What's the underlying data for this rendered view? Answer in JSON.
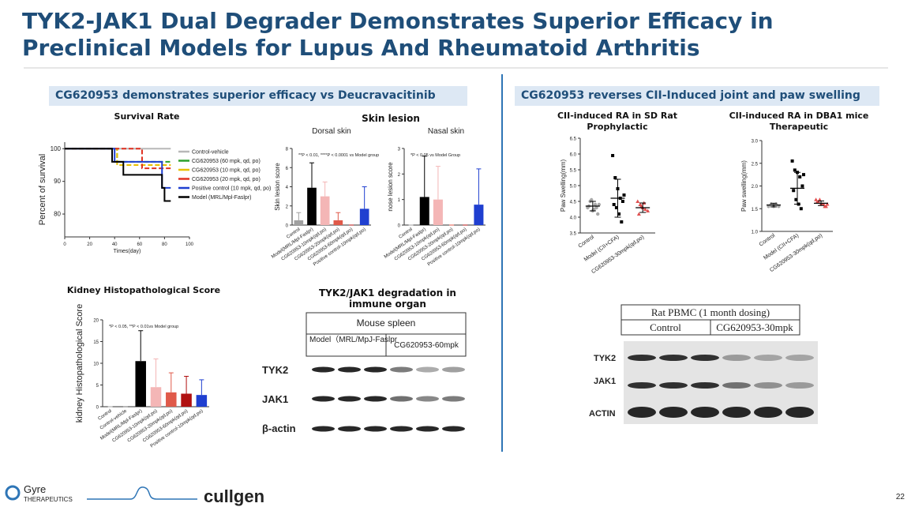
{
  "title": "TYK2-JAK1 Dual Degrader Demonstrates Superior Efficacy in Preclinical Models for Lupus And Rheumatoid Arthritis",
  "sections": [
    {
      "heading": "CG620953 demonstrates superior efficacy vs Deucravacitinib"
    },
    {
      "heading": "CG620953 reverses CII-Induced joint and paw swelling"
    }
  ],
  "skin_lesion_title": "Skin lesion",
  "chart_data": [
    {
      "type": "step",
      "title": "Survival Rate",
      "x_label": "Times(day)",
      "y_label": "Percent of survival",
      "xlim": [
        0,
        100
      ],
      "xticks": [
        0,
        20,
        40,
        60,
        80,
        100
      ],
      "ylim": [
        73,
        102
      ],
      "yticks": [
        80,
        90,
        100
      ],
      "series": [
        {
          "name": "Control-vehicle",
          "color": "#b8b8b8",
          "x": [
            0,
            85
          ],
          "values": [
            100,
            100
          ]
        },
        {
          "name": "CG620953 (60 mpk, qd, po)",
          "color": "#2ca02c",
          "x": [
            0,
            42,
            85
          ],
          "values": [
            100,
            96,
            96
          ]
        },
        {
          "name": "CG620953 (10 mpk, qd, po)",
          "color": "#e8c000",
          "x": [
            0,
            42,
            85
          ],
          "values": [
            100,
            95,
            95
          ]
        },
        {
          "name": "CG620953 (20 mpk, qd, po)",
          "color": "#e03020",
          "x": [
            0,
            62,
            85
          ],
          "values": [
            100,
            94,
            94
          ]
        },
        {
          "name": "Positive control (10 mpk, qd, po)",
          "color": "#1f3fd0",
          "x": [
            0,
            40,
            78,
            85
          ],
          "values": [
            100,
            96,
            88,
            88
          ]
        },
        {
          "name": "Model (MRL/Mpl-Faslpr)",
          "color": "#000000",
          "x": [
            0,
            38,
            47,
            78,
            80,
            85
          ],
          "values": [
            100,
            96,
            92,
            88,
            84,
            84
          ]
        }
      ]
    },
    {
      "type": "bar",
      "subtitle": "Dorsal skin",
      "y_label": "Skin lesion score",
      "annotation": "**P < 0.01, ****P < 0.0001 vs Model group",
      "categories": [
        "Control",
        "Model(MRL/Mpl-Faslpr)",
        "CG620953-10mpk(qd,po)",
        "CG620953-20mpk(qd,po)",
        "CG620953-60mpk(qd,po)",
        "Positive control-10mpk(qd,po)"
      ],
      "values": [
        0.5,
        3.9,
        3.0,
        0.5,
        0,
        1.7
      ],
      "errors": [
        0.8,
        2.6,
        1.5,
        0.8,
        0,
        2.3
      ],
      "colors": [
        "#a0a0a0",
        "#000000",
        "#f4b6b6",
        "#e05a4a",
        "#b01010",
        "#1f3fd0"
      ],
      "ylim": [
        0,
        8
      ],
      "yticks": [
        0,
        2,
        4,
        6,
        8
      ]
    },
    {
      "type": "bar",
      "subtitle": "Nasal skin",
      "y_label": "nose lesion score",
      "annotation": "*P < 0.05 vs Model Group",
      "categories": [
        "Control",
        "Model(MRL/Mpl-Faslpr)",
        "CG620953-10mpk(qd,po)",
        "CG620953-20mpk(qd,po)",
        "CG620953-60mpk(qd,po)",
        "Positive control-10mpk(qd,po)"
      ],
      "values": [
        0,
        1.1,
        1.0,
        0,
        0,
        0.8
      ],
      "errors": [
        0,
        1.6,
        1.3,
        0,
        0,
        1.4
      ],
      "colors": [
        "#a0a0a0",
        "#000000",
        "#f4b6b6",
        "#e05a4a",
        "#b01010",
        "#1f3fd0"
      ],
      "ylim": [
        0,
        3
      ],
      "yticks": [
        0,
        1,
        2,
        3
      ]
    },
    {
      "type": "bar",
      "title": "Kidney Histopathological Score",
      "y_label": "kidney Histopathological Score",
      "annotation": "*P < 0.05, **P < 0.01vs Model group",
      "categories": [
        "Control",
        "Control-vehicle",
        "Model(MRL/Mpl-Faslpr)",
        "CG620953-10mpk(qd,po)",
        "CG620953-20mpk(qd,po)",
        "CG620953-60mpk(qd,po)",
        "Positive control-10mpk(qd,po)"
      ],
      "values": [
        0,
        0,
        10.5,
        4.5,
        3.3,
        3.0,
        2.7
      ],
      "errors": [
        0,
        0,
        7,
        6.5,
        4.5,
        4,
        3.5
      ],
      "colors": [
        "#a0a0a0",
        "#707070",
        "#000000",
        "#f4b6b6",
        "#e05a4a",
        "#b01010",
        "#1f3fd0"
      ],
      "ylim": [
        0,
        20
      ],
      "yticks": [
        0,
        5,
        10,
        15,
        20
      ]
    },
    {
      "type": "dot",
      "title": "CII-induced RA in SD Rat Prophylactic",
      "y_label": "Paw Swelling(mm)",
      "categories": [
        "Control",
        "Model (CII+CFA)",
        "CG620953-30mpk(qd,po)"
      ],
      "colors": [
        "#a8a8a8",
        "#000000",
        "#e05050"
      ],
      "points": [
        [
          4.3,
          4.5,
          4.2,
          4.4,
          4.1,
          4.35,
          4.55,
          4.25,
          4.3,
          4.4
        ],
        [
          5.95,
          5.25,
          4.9,
          4.6,
          4.5,
          4.4,
          4.3,
          4.1,
          3.85,
          4.7
        ],
        [
          4.5,
          4.4,
          4.3,
          4.25,
          4.2,
          4.1,
          4.35,
          4.45
        ]
      ],
      "means": [
        4.35,
        4.6,
        4.3
      ],
      "sd": [
        0.15,
        0.6,
        0.15
      ],
      "ylim": [
        3.5,
        6.5
      ],
      "yticks": [
        3.5,
        {
          "value": 4,
          "label": "4.0"
        },
        4.5,
        {
          "value": 5,
          "label": "5.0"
        },
        5.5,
        {
          "value": 6,
          "label": "6.0"
        },
        6.5
      ]
    },
    {
      "type": "dot",
      "title": "CII-induced RA in DBA1 mice Therapeutic",
      "y_label": "Paw swelling(mm)",
      "categories": [
        "Control",
        "Model (CII+CFA)",
        "CG620953-30mpk(qd,po)"
      ],
      "colors": [
        "#a8a8a8",
        "#000000",
        "#e05050"
      ],
      "points": [
        [
          1.55,
          1.6,
          1.55,
          1.6,
          1.55
        ],
        [
          2.55,
          2.35,
          2.3,
          2.2,
          2.0,
          1.9,
          1.7,
          1.6,
          1.5,
          2.25
        ],
        [
          1.7,
          1.65,
          1.6,
          1.6,
          1.55,
          1.65,
          1.7,
          1.6,
          1.55,
          1.6
        ]
      ],
      "means": [
        1.58,
        1.95,
        1.62
      ],
      "sd": [
        0.04,
        0.35,
        0.05
      ],
      "ylim": [
        1,
        3
      ],
      "yticks": [
        {
          "value": 1,
          "label": "1.0"
        },
        1.5,
        {
          "value": 2,
          "label": "2.0"
        },
        2.5,
        {
          "value": 3,
          "label": "3.0"
        }
      ]
    }
  ],
  "blots": [
    {
      "title": "TYK2/JAK1 degradation in immune organ",
      "header": "Mouse spleen",
      "groups": [
        "Model（MRL/MpJ-Faslpr",
        "CG620953-60mpk"
      ],
      "rows": [
        "TYK2",
        "JAK1",
        "β-actin"
      ]
    },
    {
      "header": "Rat PBMC (1 month dosing)",
      "groups": [
        "Control",
        "CG620953-30mpk"
      ],
      "rows": [
        "TYK2",
        "JAK1",
        "ACTIN"
      ]
    }
  ],
  "footer": {
    "logo1": "Gyre",
    "logo1_sub": "THERAPEUTICS",
    "logo2": "cullgen",
    "page": "22"
  }
}
